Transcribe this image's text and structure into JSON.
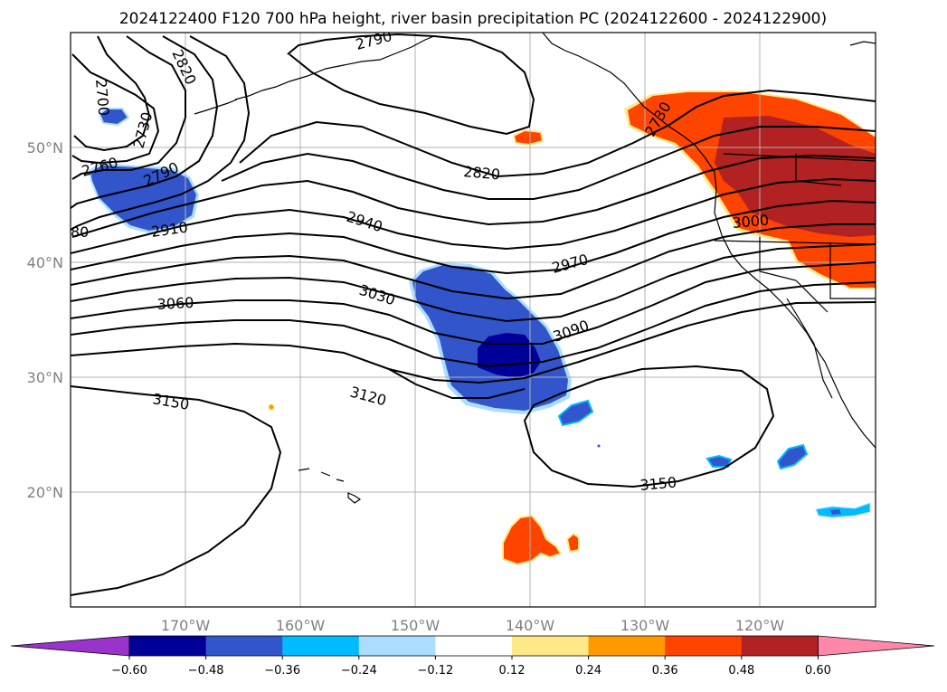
{
  "title": "2024122400 F120 700 hPa height, river basin precipitation PC (2024122600 - 2024122900)",
  "map": {
    "lon_labels": [
      "170°W",
      "160°W",
      "150°W",
      "140°W",
      "130°W",
      "120°W"
    ],
    "lat_labels": [
      "50°N",
      "40°N",
      "30°N",
      "20°N"
    ],
    "gridlines": true
  },
  "contour_labels": [
    "2820",
    "2790",
    "2700",
    "2730",
    "2760",
    "2790",
    "80",
    "2910",
    "2820",
    "2940",
    "2970",
    "3030",
    "3060",
    "3090",
    "3120",
    "3150",
    "3150",
    "2730",
    "3000"
  ],
  "shading_colors": {
    "purple": "#9933cc",
    "navy": "#000099",
    "blue": "#3355cc",
    "cyan": "#00bbff",
    "lightblue": "#aaddff",
    "white": "#ffffff",
    "yellow": "#ffe888",
    "orange": "#ff9900",
    "redorange": "#ff4400",
    "darkred": "#b22222",
    "pink": "#ff88aa"
  },
  "colorbar": {
    "colors": [
      "#000099",
      "#3355cc",
      "#00bbff",
      "#aaddff",
      "#ffffff",
      "#ffe888",
      "#ff9900",
      "#ff4400",
      "#b22222"
    ],
    "extend_min_color": "#9933cc",
    "extend_max_color": "#ff88aa",
    "tick_labels": [
      "−0.60",
      "−0.48",
      "−0.36",
      "−0.24",
      "−0.12",
      "0.12",
      "0.24",
      "0.36",
      "0.48",
      "0.60"
    ]
  }
}
